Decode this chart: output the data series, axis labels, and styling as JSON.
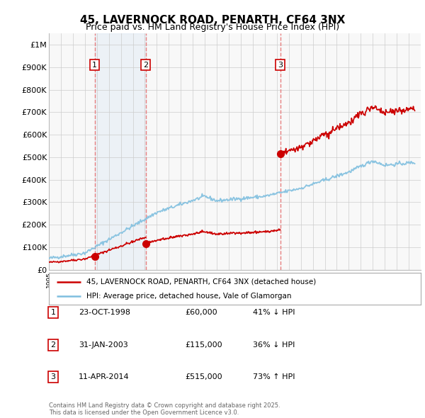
{
  "title": "45, LAVERNOCK ROAD, PENARTH, CF64 3NX",
  "subtitle": "Price paid vs. HM Land Registry's House Price Index (HPI)",
  "title_fontsize": 11,
  "subtitle_fontsize": 9,
  "ylim": [
    0,
    1050000
  ],
  "yticks": [
    0,
    100000,
    200000,
    300000,
    400000,
    500000,
    600000,
    700000,
    800000,
    900000,
    1000000
  ],
  "ytick_labels": [
    "£0",
    "£100K",
    "£200K",
    "£300K",
    "£400K",
    "£500K",
    "£600K",
    "£700K",
    "£800K",
    "£900K",
    "£1M"
  ],
  "hpi_color": "#7fbfdf",
  "price_color": "#cc0000",
  "sale_marker_color": "#cc0000",
  "vline_color": "#e88080",
  "shade_color": "#ddeeff",
  "background_color": "#f8f8f8",
  "grid_color": "#cccccc",
  "sale_dates": [
    1998.81,
    2003.08,
    2014.28
  ],
  "sale_prices": [
    60000,
    115000,
    515000
  ],
  "sale_labels": [
    "1",
    "2",
    "3"
  ],
  "legend_label_red": "45, LAVERNOCK ROAD, PENARTH, CF64 3NX (detached house)",
  "legend_label_blue": "HPI: Average price, detached house, Vale of Glamorgan",
  "table_data": [
    {
      "num": "1",
      "date": "23-OCT-1998",
      "price": "£60,000",
      "hpi": "41% ↓ HPI"
    },
    {
      "num": "2",
      "date": "31-JAN-2003",
      "price": "£115,000",
      "hpi": "36% ↓ HPI"
    },
    {
      "num": "3",
      "date": "11-APR-2014",
      "price": "£515,000",
      "hpi": "73% ↑ HPI"
    }
  ],
  "footer": "Contains HM Land Registry data © Crown copyright and database right 2025.\nThis data is licensed under the Open Government Licence v3.0.",
  "xmin": 1995,
  "xmax": 2026
}
